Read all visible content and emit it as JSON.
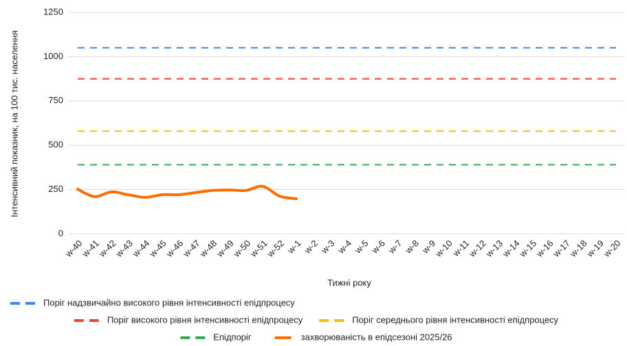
{
  "chart_data": {
    "type": "line",
    "ylabel": "Інтенсивний показник, на 100 тис. населення",
    "xlabel": "Тижні року",
    "categories": [
      "w-40",
      "w-41",
      "w-42",
      "w-43",
      "w-44",
      "w-45",
      "w-46",
      "w-47",
      "w-48",
      "w-49",
      "w-50",
      "w-51",
      "w-52",
      "w-1",
      "w-2",
      "w-3",
      "w-4",
      "w-5",
      "w-6",
      "w-7",
      "w-8",
      "w-9",
      "w-10",
      "w-11",
      "w-12",
      "w-13",
      "w-14",
      "w-15",
      "w-16",
      "w-17",
      "w-18",
      "w-19",
      "w-20"
    ],
    "series": [
      {
        "name": "Поріг надзвичайно високого рівня інтенсивності епідпроцесу",
        "color": "#4285f4",
        "dashed": true,
        "values": [
          1050,
          1050,
          1050,
          1050,
          1050,
          1050,
          1050,
          1050,
          1050,
          1050,
          1050,
          1050,
          1050,
          1050,
          1050,
          1050,
          1050,
          1050,
          1050,
          1050,
          1050,
          1050,
          1050,
          1050,
          1050,
          1050,
          1050,
          1050,
          1050,
          1050,
          1050,
          1050,
          1050
        ]
      },
      {
        "name": "Поріг високого рівня інтенсивності епідпроцесу",
        "color": "#ea4335",
        "dashed": true,
        "values": [
          875,
          875,
          875,
          875,
          875,
          875,
          875,
          875,
          875,
          875,
          875,
          875,
          875,
          875,
          875,
          875,
          875,
          875,
          875,
          875,
          875,
          875,
          875,
          875,
          875,
          875,
          875,
          875,
          875,
          875,
          875,
          875,
          875
        ]
      },
      {
        "name": "Поріг середнього рівня інтенсивності епідпроцесу",
        "color": "#fbbc04",
        "dashed": true,
        "values": [
          580,
          580,
          580,
          580,
          580,
          580,
          580,
          580,
          580,
          580,
          580,
          580,
          580,
          580,
          580,
          580,
          580,
          580,
          580,
          580,
          580,
          580,
          580,
          580,
          580,
          580,
          580,
          580,
          580,
          580,
          580,
          580,
          580
        ]
      },
      {
        "name": "Епідпоріг",
        "color": "#34a853",
        "dashed": true,
        "values": [
          390,
          390,
          390,
          390,
          390,
          390,
          390,
          390,
          390,
          390,
          390,
          390,
          390,
          390,
          390,
          390,
          390,
          390,
          390,
          390,
          390,
          390,
          390,
          390,
          390,
          390,
          390,
          390,
          390,
          390,
          390,
          390,
          390
        ]
      },
      {
        "name": "захворюваність в епідсезоні 2025/26",
        "color": "#ff6d01",
        "dashed": false,
        "values": [
          252,
          210,
          237,
          221,
          206,
          221,
          221,
          233,
          245,
          248,
          245,
          268,
          213,
          198,
          null,
          null,
          null,
          null,
          null,
          null,
          null,
          null,
          null,
          null,
          null,
          null,
          null,
          null,
          null,
          null,
          null,
          null,
          null
        ]
      }
    ],
    "ylim": [
      0,
      1250
    ],
    "yticks": [
      0,
      250,
      500,
      750,
      1000,
      1250
    ],
    "grid": true
  }
}
